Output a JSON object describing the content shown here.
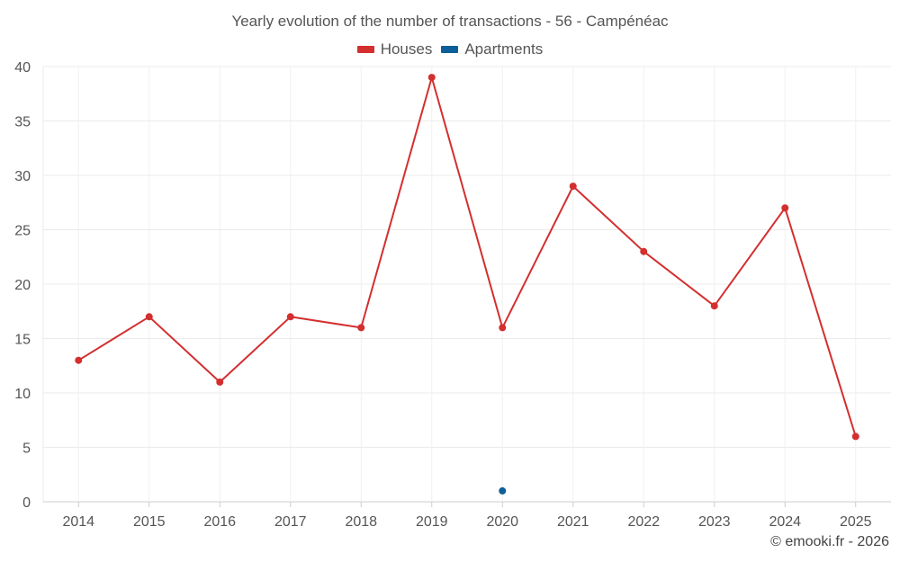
{
  "chart_data": {
    "type": "line",
    "title": "Yearly evolution of the number of transactions - 56 - Campénéac",
    "categories": [
      "2014",
      "2015",
      "2016",
      "2017",
      "2018",
      "2019",
      "2020",
      "2021",
      "2022",
      "2023",
      "2024",
      "2025"
    ],
    "series": [
      {
        "name": "Houses",
        "color": "#d32f2f",
        "values": [
          13,
          17,
          11,
          17,
          16,
          39,
          16,
          29,
          23,
          18,
          27,
          6
        ]
      },
      {
        "name": "Apartments",
        "color": "#0d5f99",
        "values": [
          null,
          null,
          null,
          null,
          null,
          null,
          1,
          null,
          null,
          null,
          null,
          null
        ]
      }
    ],
    "ylim": [
      0,
      40
    ],
    "yticks": [
      0,
      5,
      10,
      15,
      20,
      25,
      30,
      35,
      40
    ],
    "xlabel": "",
    "ylabel": "",
    "grid": true,
    "legend_position": "top-center"
  },
  "footer": {
    "copyright": "© emooki.fr - 2026"
  }
}
